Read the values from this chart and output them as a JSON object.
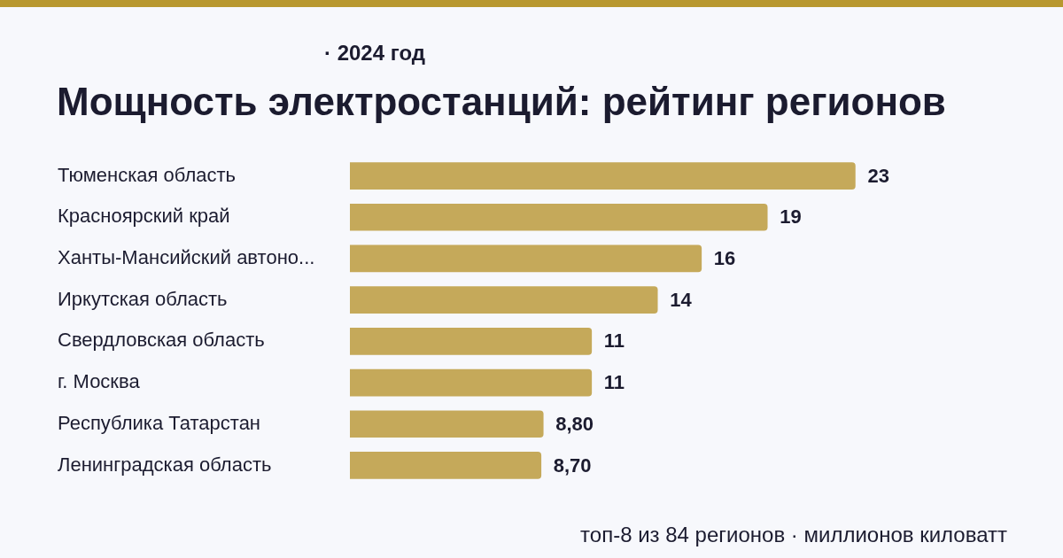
{
  "chart_data": {
    "type": "bar",
    "orientation": "horizontal",
    "title": "Мощность электростанций: рейтинг регионов",
    "subtitle": "· 2024 год",
    "categories": [
      "Тюменская область",
      "Красноярский край",
      "Ханты-Мансийский автоно...",
      "Иркутская область",
      "Свердловская область",
      "г. Москва",
      "Республика Татарстан",
      "Ленинградская область"
    ],
    "values": [
      23,
      19,
      16,
      14,
      11,
      11,
      8.8,
      8.7
    ],
    "value_labels": [
      "23",
      "19",
      "16",
      "14",
      "11",
      "11",
      "8,80",
      "8,70"
    ],
    "color": "#c5a95a",
    "annotations": [
      "топ-8 из 84 регионов · миллионов киловатт"
    ]
  }
}
